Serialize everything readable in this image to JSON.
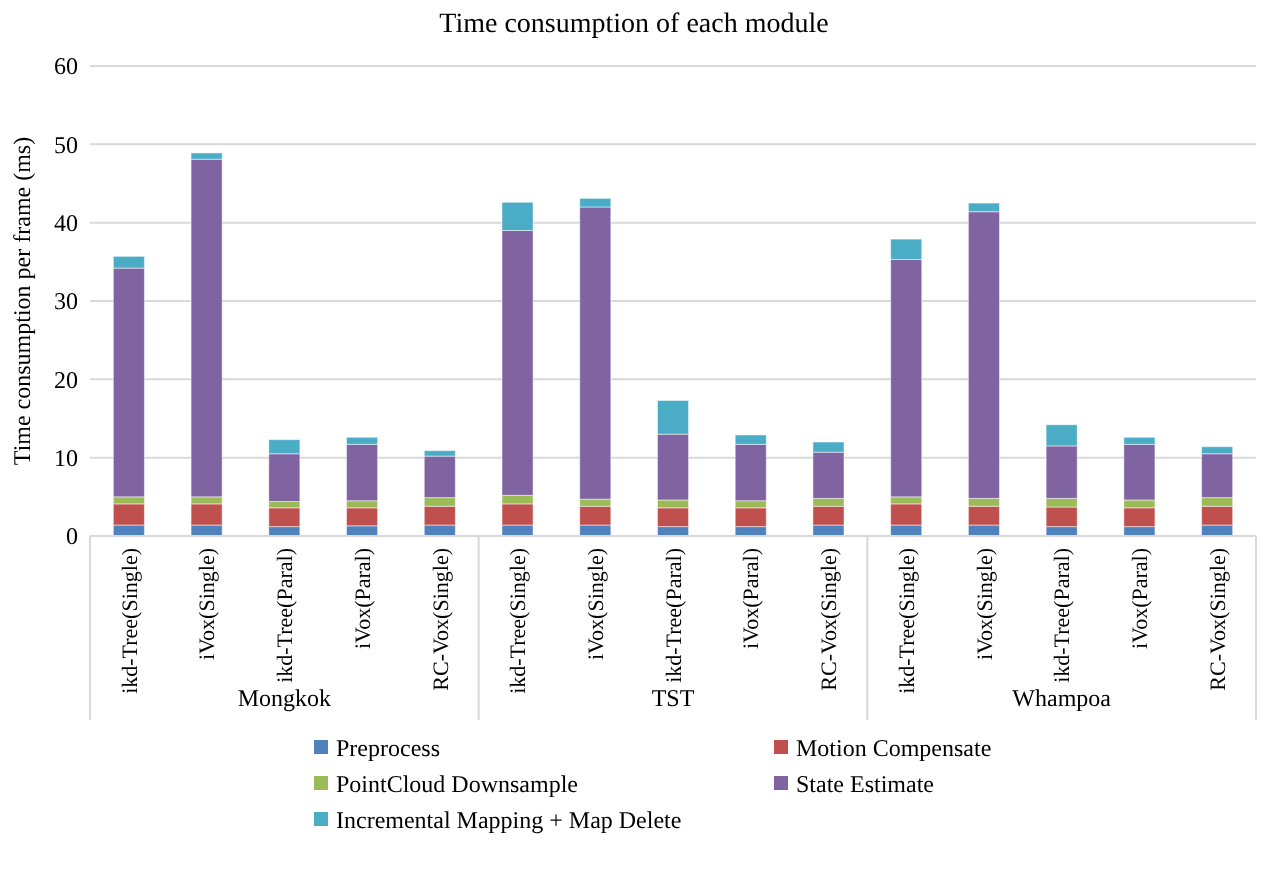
{
  "chart_data": {
    "type": "bar",
    "stacked": true,
    "title": "Time consumption of each module",
    "ylabel": "Time consumption per frame (ms)",
    "categories": [
      "ikd-Tree(Single)",
      "iVox(Single)",
      "ikd-Tree(Paral)",
      "iVox(Paral)",
      "RC-Vox(Single)",
      "ikd-Tree(Single)",
      "iVox(Single)",
      "ikd-Tree(Paral)",
      "iVox(Paral)",
      "RC-Vox(Single)",
      "ikd-Tree(Single)",
      "iVox(Single)",
      "ikd-Tree(Paral)",
      "iVox(Paral)",
      "RC-Vox(Single)"
    ],
    "annotations": [
      "Mongkok",
      "TST",
      "Whampoa"
    ],
    "series": [
      {
        "name": "Preprocess",
        "color": "#4f81bd",
        "values": [
          1.4,
          1.4,
          1.2,
          1.3,
          1.4,
          1.4,
          1.4,
          1.2,
          1.2,
          1.4,
          1.4,
          1.4,
          1.2,
          1.2,
          1.4
        ]
      },
      {
        "name": "Motion Compensate",
        "color": "#c0504d",
        "values": [
          2.7,
          2.7,
          2.4,
          2.3,
          2.4,
          2.7,
          2.4,
          2.4,
          2.4,
          2.4,
          2.7,
          2.4,
          2.5,
          2.4,
          2.4
        ]
      },
      {
        "name": "PointCloud Downsample",
        "color": "#9bbb59",
        "values": [
          0.9,
          0.9,
          0.8,
          0.9,
          1.1,
          1.1,
          0.9,
          1.0,
          0.9,
          1.0,
          0.9,
          1.0,
          1.1,
          1.0,
          1.1
        ]
      },
      {
        "name": "State Estimate",
        "color": "#8064a2",
        "values": [
          29.2,
          43.1,
          6.1,
          7.2,
          5.3,
          33.8,
          37.3,
          8.4,
          7.2,
          5.9,
          30.3,
          36.6,
          6.7,
          7.1,
          5.6
        ]
      },
      {
        "name": "Incremental Mapping + Map Delete",
        "color": "#4bacc6",
        "values": [
          1.5,
          0.8,
          1.8,
          0.9,
          0.7,
          3.6,
          1.1,
          4.3,
          1.2,
          1.3,
          2.6,
          1.1,
          2.7,
          0.9,
          0.9
        ]
      }
    ],
    "ylim": [
      0,
      60
    ],
    "yticks": [
      0,
      10,
      20,
      30,
      40,
      50,
      60
    ],
    "grid": "y",
    "legend": "bottom"
  }
}
